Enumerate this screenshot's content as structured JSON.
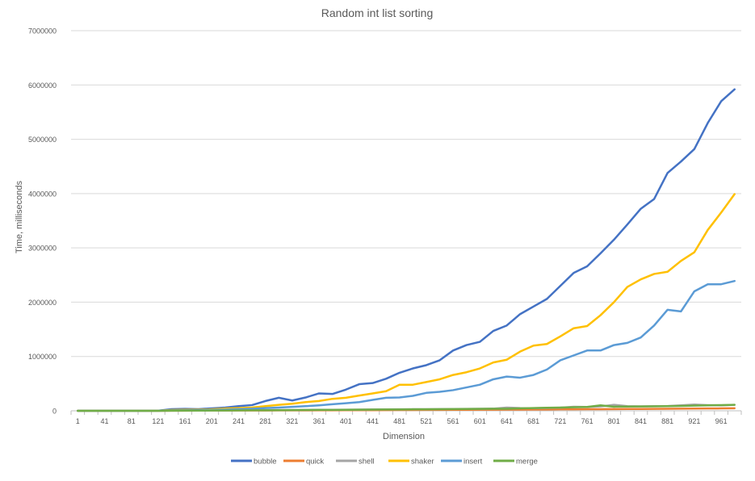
{
  "chart_data": {
    "type": "line",
    "title": "Random int list sorting",
    "xlabel": "Dimension",
    "ylabel": "Time, milliseconds",
    "ylim": [
      0,
      7000000
    ],
    "yticks": [
      "0",
      "1000000",
      "2000000",
      "3000000",
      "4000000",
      "5000000",
      "6000000",
      "7000000"
    ],
    "grid": true,
    "legend_position": "bottom",
    "x": [
      1,
      21,
      41,
      61,
      81,
      101,
      121,
      141,
      161,
      181,
      201,
      221,
      241,
      261,
      281,
      301,
      321,
      341,
      361,
      381,
      401,
      421,
      441,
      461,
      481,
      501,
      521,
      541,
      561,
      581,
      601,
      621,
      641,
      661,
      681,
      701,
      721,
      741,
      761,
      781,
      801,
      821,
      841,
      861,
      881,
      901,
      921,
      941,
      961,
      981
    ],
    "series": [
      {
        "name": "bubble",
        "color": "#4472C4",
        "values": [
          0,
          0,
          0,
          0,
          0,
          0,
          2000,
          30000,
          35000,
          30000,
          45000,
          60000,
          85000,
          105000,
          180000,
          240000,
          190000,
          245000,
          320000,
          310000,
          390000,
          490000,
          510000,
          590000,
          700000,
          780000,
          840000,
          930000,
          1110000,
          1210000,
          1270000,
          1470000,
          1570000,
          1780000,
          1920000,
          2060000,
          2300000,
          2540000,
          2660000,
          2900000,
          3150000,
          3430000,
          3720000,
          3900000,
          4380000,
          4590000,
          4820000,
          5300000,
          5700000,
          5920000
        ]
      },
      {
        "name": "quick",
        "color": "#ED7D31",
        "values": [
          0,
          0,
          0,
          0,
          0,
          0,
          0,
          2000,
          2000,
          3000,
          3000,
          4000,
          5000,
          5000,
          6000,
          7000,
          8000,
          8000,
          9000,
          10000,
          11000,
          12000,
          12000,
          13000,
          14000,
          15000,
          16000,
          17000,
          18000,
          19000,
          20000,
          21000,
          22000,
          23000,
          24000,
          25000,
          27000,
          28000,
          29000,
          30000,
          31000,
          33000,
          34000,
          36000,
          37000,
          39000,
          40000,
          42000,
          44000,
          46000
        ]
      },
      {
        "name": "shell",
        "color": "#A5A5A5",
        "values": [
          0,
          0,
          0,
          0,
          0,
          0,
          0,
          4000,
          5000,
          6000,
          7000,
          8000,
          10000,
          11000,
          13000,
          14000,
          15000,
          16000,
          18000,
          19000,
          20000,
          22000,
          24000,
          26000,
          28000,
          29000,
          30000,
          32000,
          34000,
          36000,
          38000,
          40000,
          60000,
          50000,
          48000,
          52000,
          58000,
          75000,
          70000,
          80000,
          110000,
          85000,
          82000,
          85000,
          88000,
          100000,
          115000,
          105000,
          100000,
          110000
        ]
      },
      {
        "name": "shaker",
        "color": "#FFC000",
        "values": [
          0,
          0,
          0,
          0,
          0,
          0,
          1000,
          15000,
          18000,
          18000,
          28000,
          40000,
          50000,
          60000,
          85000,
          110000,
          130000,
          160000,
          180000,
          220000,
          240000,
          280000,
          320000,
          360000,
          480000,
          480000,
          530000,
          580000,
          660000,
          710000,
          780000,
          890000,
          940000,
          1090000,
          1200000,
          1230000,
          1370000,
          1520000,
          1560000,
          1760000,
          2000000,
          2280000,
          2420000,
          2520000,
          2560000,
          2760000,
          2920000,
          3330000,
          3650000,
          3990000
        ]
      },
      {
        "name": "insert",
        "color": "#5B9BD5",
        "values": [
          0,
          0,
          0,
          0,
          0,
          0,
          1000,
          8000,
          10000,
          12000,
          17000,
          22000,
          30000,
          38000,
          50000,
          60000,
          72000,
          85000,
          100000,
          120000,
          140000,
          160000,
          200000,
          240000,
          245000,
          275000,
          330000,
          350000,
          380000,
          430000,
          480000,
          580000,
          630000,
          610000,
          660000,
          760000,
          930000,
          1020000,
          1110000,
          1110000,
          1210000,
          1250000,
          1350000,
          1570000,
          1860000,
          1830000,
          2200000,
          2330000,
          2330000,
          2390000
        ]
      },
      {
        "name": "merge",
        "color": "#70AD47",
        "values": [
          0,
          0,
          0,
          0,
          0,
          0,
          0,
          2000,
          3000,
          4000,
          5000,
          6000,
          8000,
          9000,
          10000,
          11000,
          13000,
          14000,
          16000,
          17000,
          19000,
          20000,
          22000,
          24000,
          25000,
          27000,
          28000,
          30000,
          32000,
          33000,
          35000,
          37000,
          38000,
          45000,
          50000,
          55000,
          60000,
          65000,
          70000,
          100000,
          75000,
          78000,
          80000,
          82000,
          85000,
          90000,
          95000,
          100000,
          105000,
          110000
        ]
      }
    ]
  }
}
